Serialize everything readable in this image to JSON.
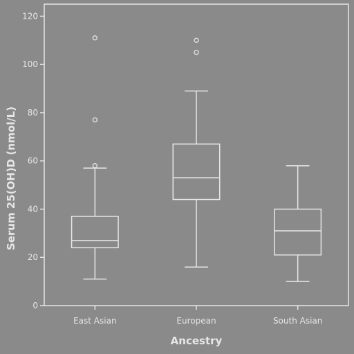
{
  "chart_data": {
    "type": "box",
    "title": "",
    "xlabel": "Ancestry",
    "ylabel": "Serum 25(OH)D (nmol/L)",
    "ylim": [
      0,
      125
    ],
    "yticks": [
      0,
      20,
      40,
      60,
      80,
      100,
      120
    ],
    "grid": false,
    "categories": [
      "East Asian",
      "European",
      "South Asian"
    ],
    "boxes": [
      {
        "category": "East Asian",
        "whisker_low": 11,
        "q1": 24,
        "median": 27,
        "q3": 37,
        "whisker_high": 57,
        "outliers": [
          58,
          77,
          111
        ]
      },
      {
        "category": "European",
        "whisker_low": 16,
        "q1": 44,
        "median": 53,
        "q3": 67,
        "whisker_high": 89,
        "outliers": [
          105,
          110
        ]
      },
      {
        "category": "South Asian",
        "whisker_low": 10,
        "q1": 21,
        "median": 31,
        "q3": 40,
        "whisker_high": 58,
        "outliers": []
      }
    ]
  },
  "style": {
    "background": "#8a8a8a",
    "plot_background": "#8a8a8a",
    "line_color": "#e6e6e6",
    "text_color": "#e6e6e6"
  }
}
